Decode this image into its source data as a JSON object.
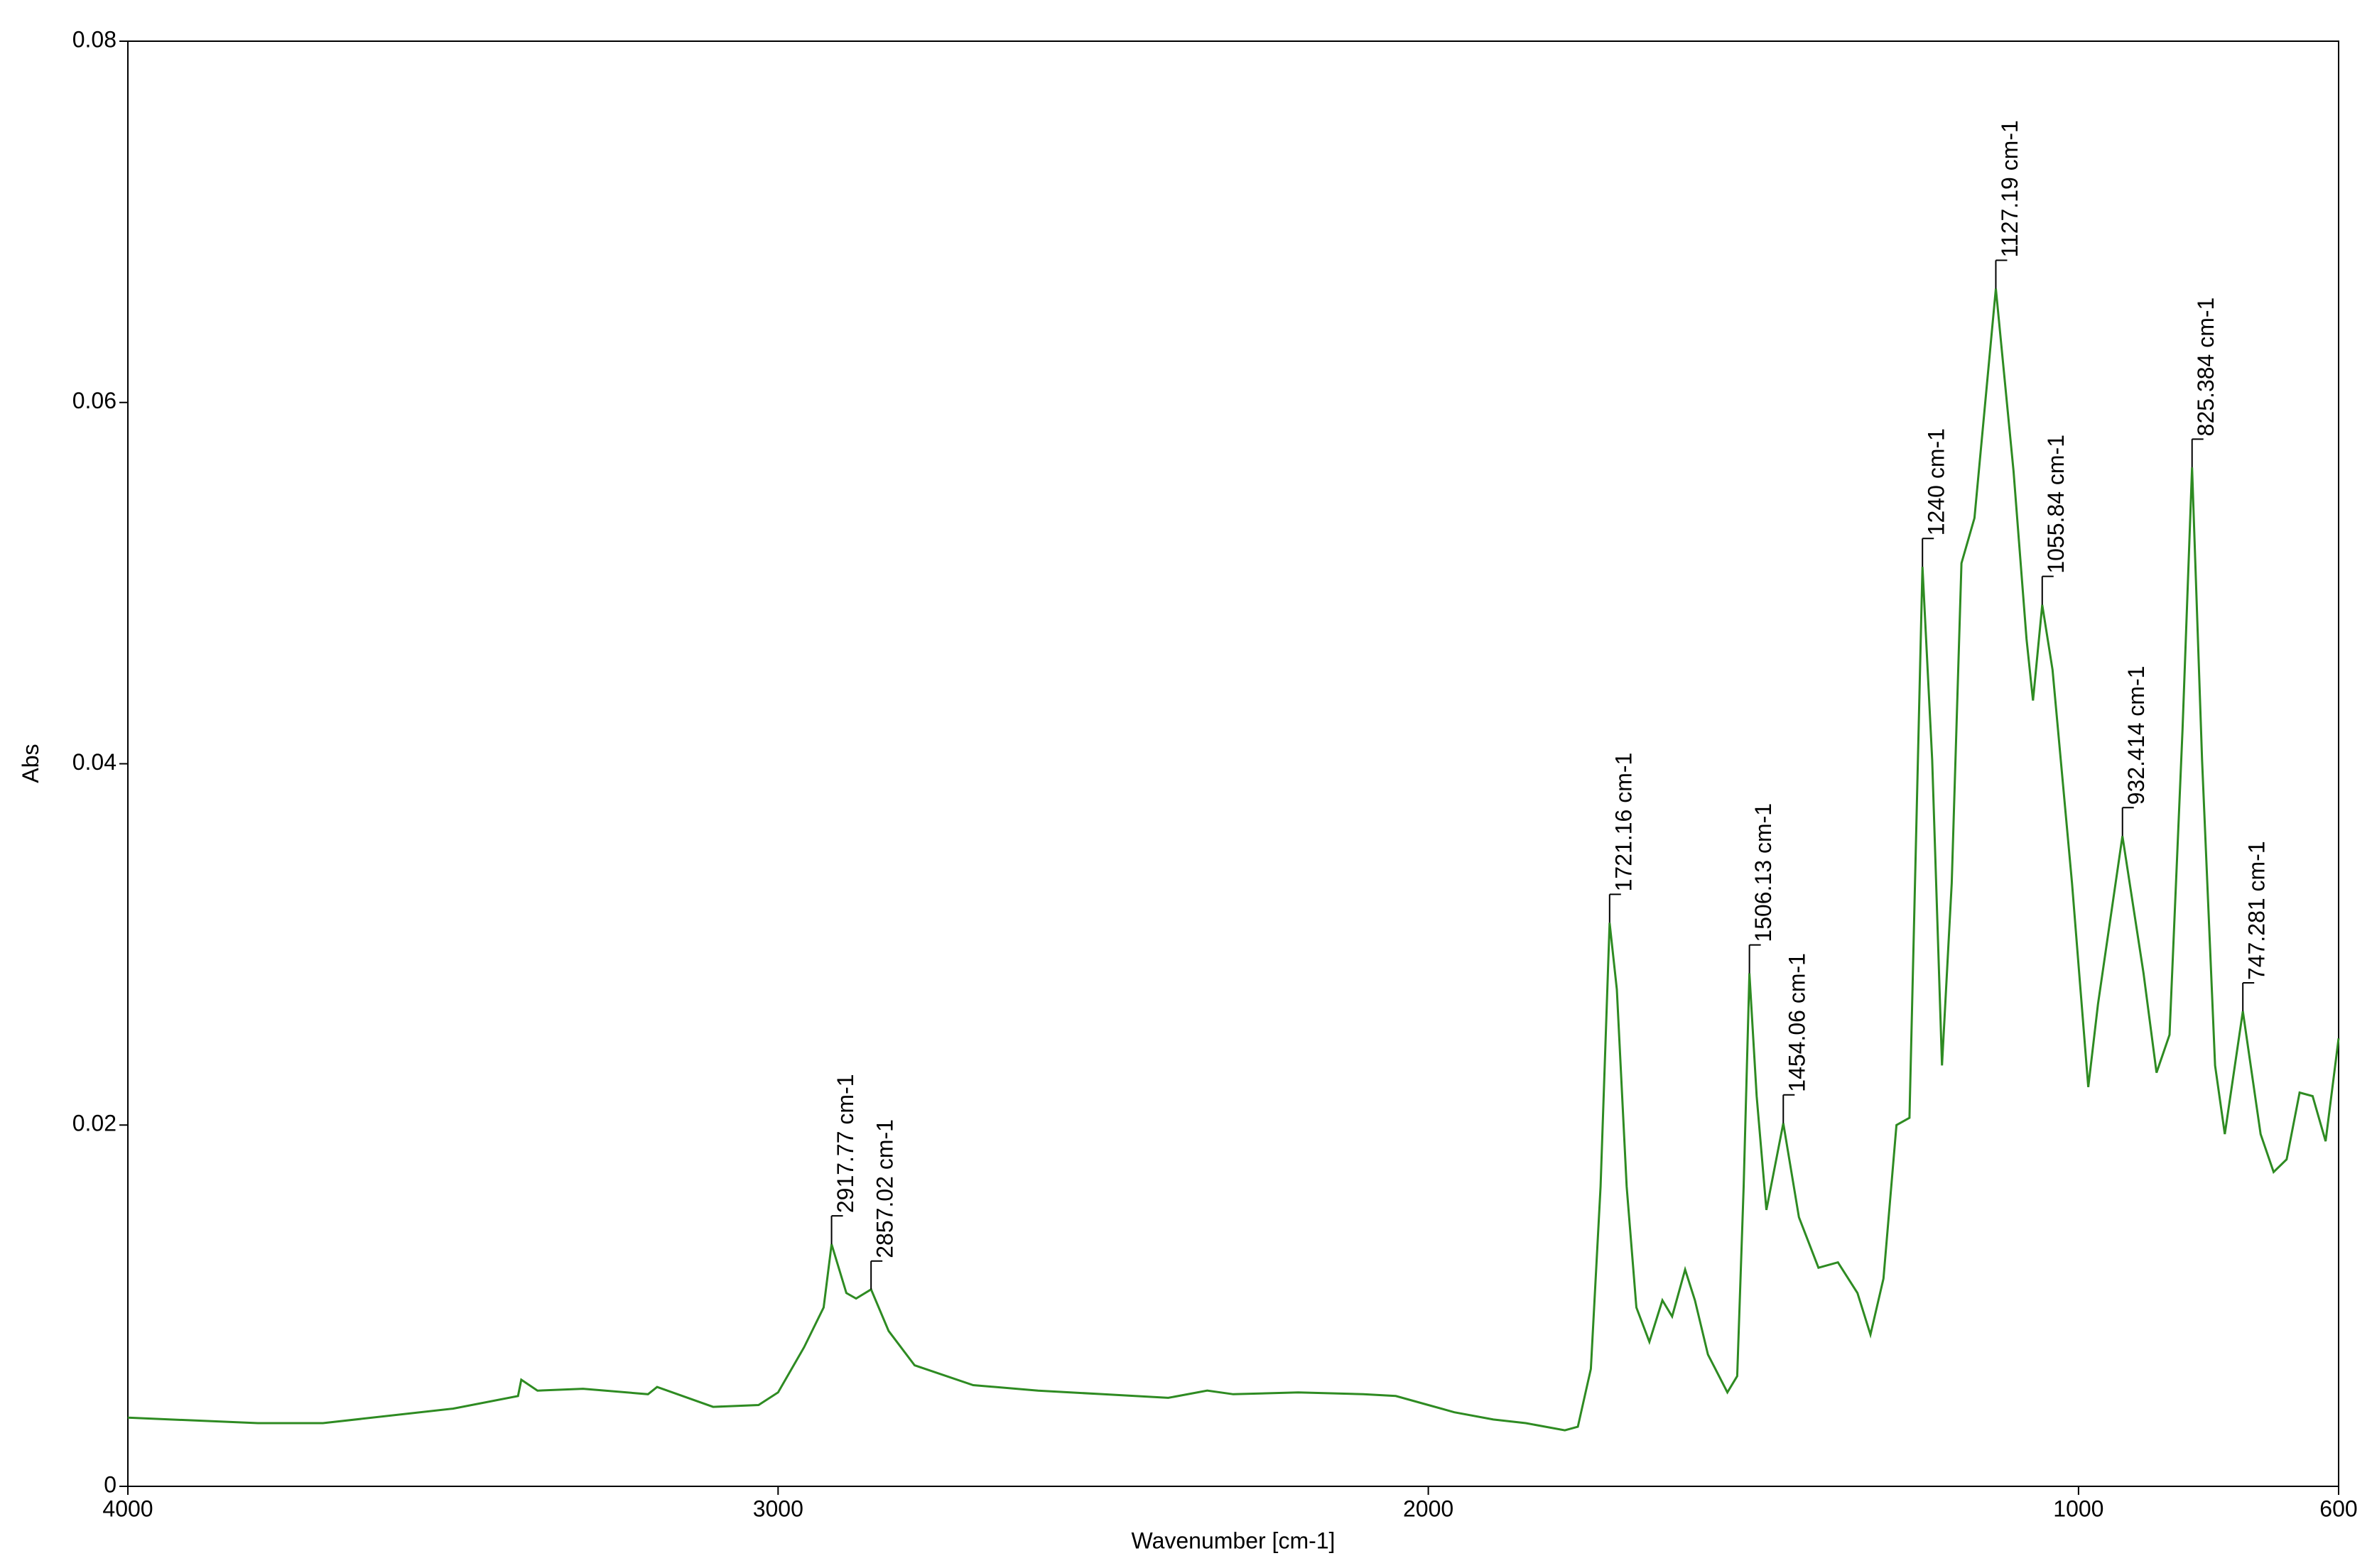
{
  "chart_data": {
    "type": "line",
    "x_label": "Wavenumber [cm-1]",
    "y_label": "Abs",
    "xlim": [
      4000,
      600
    ],
    "ylim": [
      0,
      0.08
    ],
    "xticks": [
      4000,
      3000,
      2000,
      1000,
      600
    ],
    "yticks": [
      0,
      0.02,
      0.04,
      0.06,
      0.08
    ],
    "series": [
      {
        "color": "#2e8b22",
        "x": [
          4000,
          3800,
          3700,
          3500,
          3400,
          3395,
          3370,
          3300,
          3200,
          3186,
          3100,
          3030,
          3000,
          2960,
          2930,
          2917.77,
          2895,
          2880,
          2857.02,
          2830,
          2790,
          2700,
          2600,
          2500,
          2400,
          2340,
          2300,
          2200,
          2100,
          2050,
          2000,
          1960,
          1900,
          1850,
          1790,
          1770,
          1750,
          1735,
          1721.16,
          1710,
          1695,
          1680,
          1660,
          1640,
          1625,
          1605,
          1590,
          1570,
          1540,
          1525,
          1515,
          1506.13,
          1495,
          1480,
          1454.06,
          1430,
          1400,
          1370,
          1340,
          1320,
          1300,
          1280,
          1260,
          1240,
          1225,
          1210,
          1195,
          1180,
          1160,
          1127.19,
          1100,
          1080,
          1070,
          1055.84,
          1040,
          1010,
          985,
          970,
          932.414,
          900,
          880,
          860,
          840,
          825.384,
          810,
          790,
          775,
          747.281,
          720,
          700,
          680,
          660,
          640,
          620,
          600
        ],
        "values": [
          0.0038,
          0.0035,
          0.0035,
          0.0043,
          0.005,
          0.0059,
          0.0053,
          0.0054,
          0.0051,
          0.0055,
          0.0044,
          0.0045,
          0.0052,
          0.0077,
          0.0099,
          0.0134,
          0.0107,
          0.0104,
          0.0109,
          0.0086,
          0.0067,
          0.0056,
          0.0053,
          0.0051,
          0.0049,
          0.0053,
          0.0051,
          0.0052,
          0.0051,
          0.005,
          0.0045,
          0.0041,
          0.0037,
          0.0035,
          0.0031,
          0.0033,
          0.0065,
          0.0166,
          0.0312,
          0.0275,
          0.0166,
          0.0099,
          0.008,
          0.0103,
          0.0094,
          0.012,
          0.0103,
          0.0073,
          0.0052,
          0.0061,
          0.0166,
          0.0284,
          0.0216,
          0.0153,
          0.0201,
          0.0149,
          0.0121,
          0.0124,
          0.0107,
          0.0084,
          0.0115,
          0.02,
          0.0204,
          0.0509,
          0.0402,
          0.0233,
          0.0334,
          0.0511,
          0.0536,
          0.0663,
          0.0562,
          0.0469,
          0.0435,
          0.0488,
          0.0452,
          0.0334,
          0.0221,
          0.0267,
          0.036,
          0.0284,
          0.0229,
          0.025,
          0.0419,
          0.0564,
          0.0402,
          0.0233,
          0.0195,
          0.0263,
          0.0195,
          0.0174,
          0.0181,
          0.0218,
          0.0216,
          0.0191,
          0.0248
        ]
      }
    ],
    "annotations": [
      {
        "x": 2917.77,
        "y": 0.0134,
        "label": "2917.77 cm-1"
      },
      {
        "x": 2857.02,
        "y": 0.0109,
        "label": "2857.02 cm-1"
      },
      {
        "x": 1721.16,
        "y": 0.0312,
        "label": "1721.16 cm-1"
      },
      {
        "x": 1506.13,
        "y": 0.0284,
        "label": "1506.13 cm-1"
      },
      {
        "x": 1454.06,
        "y": 0.0201,
        "label": "1454.06 cm-1"
      },
      {
        "x": 1240,
        "y": 0.0509,
        "label": "1240 cm-1"
      },
      {
        "x": 1127.19,
        "y": 0.0663,
        "label": "1127.19 cm-1"
      },
      {
        "x": 1055.84,
        "y": 0.0488,
        "label": "1055.84 cm-1"
      },
      {
        "x": 932.414,
        "y": 0.036,
        "label": "932.414 cm-1"
      },
      {
        "x": 825.384,
        "y": 0.0564,
        "label": "825.384 cm-1"
      },
      {
        "x": 747.281,
        "y": 0.0263,
        "label": "747.281 cm-1"
      }
    ]
  }
}
